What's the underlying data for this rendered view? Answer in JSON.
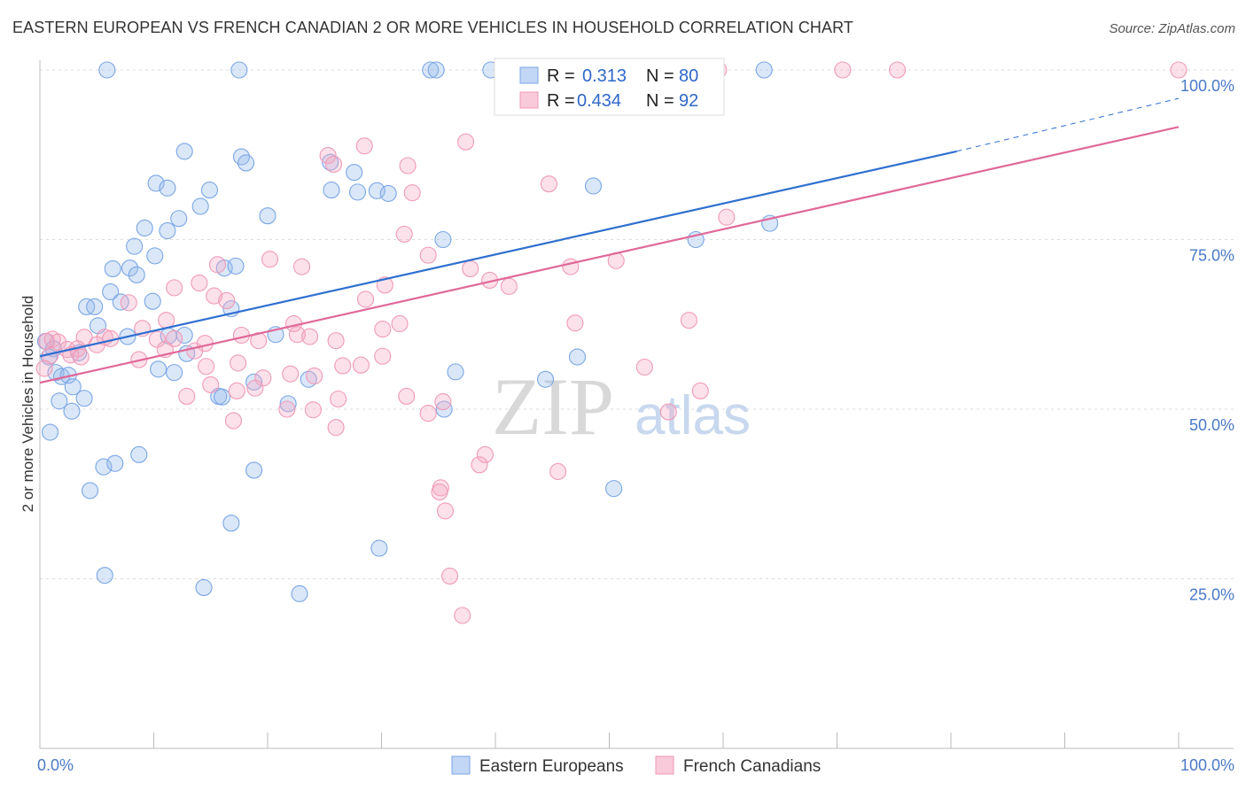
{
  "title": "EASTERN EUROPEAN VS FRENCH CANADIAN 2 OR MORE VEHICLES IN HOUSEHOLD CORRELATION CHART",
  "source": "Source: ZipAtlas.com",
  "watermark": {
    "zip": "ZIP",
    "atlas": "atlas"
  },
  "legend": {
    "r_label": "R =",
    "n_label": "N =",
    "rows": [
      {
        "r": "0.313",
        "n": "80",
        "color": "#7aa6e6"
      },
      {
        "r": "0.434",
        "n": "92",
        "color": "#f09ab8"
      }
    ]
  },
  "bottom_legend": [
    "Eastern Europeans",
    "French Canadians"
  ],
  "chart_data": {
    "type": "scatter",
    "ylabel": "2 or more Vehicles in Household",
    "xlim": [
      0,
      100
    ],
    "ylim": [
      0,
      100
    ],
    "x_ticks": [
      "0.0%",
      "100.0%"
    ],
    "y_ticks": [
      {
        "value": 25,
        "label": "25.0%"
      },
      {
        "value": 50,
        "label": "50.0%"
      },
      {
        "value": 75,
        "label": "75.0%"
      },
      {
        "value": 100,
        "label": "100.0%"
      }
    ],
    "grid": true,
    "series": [
      {
        "name": "Eastern Europeans",
        "color": "#7aa6e6",
        "trend": {
          "x0": 0,
          "y0": 57.8,
          "x1": 80.5,
          "y1": 88.0,
          "dash_to": {
            "x": 100,
            "y": 95.8
          }
        },
        "points": [
          [
            17.5,
            100
          ],
          [
            34.3,
            100
          ],
          [
            34.8,
            100
          ],
          [
            39.6,
            100
          ],
          [
            63.6,
            100
          ],
          [
            5.9,
            100
          ],
          [
            12.7,
            88.0
          ],
          [
            17.7,
            87.2
          ],
          [
            18.1,
            86.3
          ],
          [
            25.5,
            86.4
          ],
          [
            27.6,
            84.9
          ],
          [
            10.2,
            83.3
          ],
          [
            11.2,
            82.6
          ],
          [
            14.9,
            82.3
          ],
          [
            25.6,
            82.3
          ],
          [
            27.9,
            82.0
          ],
          [
            29.6,
            82.2
          ],
          [
            30.6,
            81.8
          ],
          [
            48.6,
            82.9
          ],
          [
            14.1,
            79.9
          ],
          [
            12.2,
            78.1
          ],
          [
            20.0,
            78.5
          ],
          [
            9.2,
            76.7
          ],
          [
            11.2,
            76.3
          ],
          [
            8.3,
            74.0
          ],
          [
            10.1,
            72.6
          ],
          [
            35.4,
            75.0
          ],
          [
            57.6,
            75.0
          ],
          [
            64.1,
            77.4
          ],
          [
            6.4,
            70.7
          ],
          [
            7.9,
            70.8
          ],
          [
            8.5,
            69.8
          ],
          [
            16.2,
            70.8
          ],
          [
            17.2,
            71.1
          ],
          [
            6.2,
            67.3
          ],
          [
            4.1,
            65.1
          ],
          [
            4.8,
            65.1
          ],
          [
            7.1,
            65.8
          ],
          [
            9.9,
            65.9
          ],
          [
            16.8,
            64.8
          ],
          [
            5.1,
            62.3
          ],
          [
            7.7,
            60.7
          ],
          [
            11.3,
            60.8
          ],
          [
            12.7,
            60.9
          ],
          [
            20.7,
            61.0
          ],
          [
            0.5,
            60.0
          ],
          [
            1.2,
            58.9
          ],
          [
            0.8,
            57.7
          ],
          [
            12.9,
            58.2
          ],
          [
            3.4,
            58.3
          ],
          [
            10.4,
            55.9
          ],
          [
            11.8,
            55.4
          ],
          [
            1.4,
            55.4
          ],
          [
            1.9,
            54.8
          ],
          [
            2.5,
            55.0
          ],
          [
            36.5,
            55.5
          ],
          [
            47.2,
            57.7
          ],
          [
            2.9,
            53.3
          ],
          [
            18.8,
            54.0
          ],
          [
            23.6,
            54.4
          ],
          [
            44.4,
            54.4
          ],
          [
            1.7,
            51.2
          ],
          [
            3.9,
            51.6
          ],
          [
            15.7,
            51.9
          ],
          [
            16.0,
            51.8
          ],
          [
            21.8,
            50.8
          ],
          [
            35.5,
            50.0
          ],
          [
            2.8,
            49.7
          ],
          [
            0.9,
            46.6
          ],
          [
            8.7,
            43.3
          ],
          [
            5.6,
            41.5
          ],
          [
            6.6,
            42.0
          ],
          [
            18.8,
            41.0
          ],
          [
            4.4,
            38.0
          ],
          [
            50.4,
            38.3
          ],
          [
            16.8,
            33.2
          ],
          [
            29.8,
            29.5
          ],
          [
            5.7,
            25.5
          ],
          [
            14.4,
            23.7
          ],
          [
            22.8,
            22.8
          ]
        ]
      },
      {
        "name": "French Canadians",
        "color": "#f09ab8",
        "trend": {
          "x0": 0,
          "y0": 53.9,
          "x1": 100,
          "y1": 91.6
        },
        "points": [
          [
            47.5,
            100
          ],
          [
            59.6,
            100
          ],
          [
            70.5,
            100
          ],
          [
            75.3,
            100
          ],
          [
            100,
            100
          ],
          [
            37.4,
            89.4
          ],
          [
            28.5,
            88.8
          ],
          [
            25.3,
            87.4
          ],
          [
            25.8,
            86.1
          ],
          [
            32.3,
            85.9
          ],
          [
            44.7,
            83.2
          ],
          [
            32.7,
            81.9
          ],
          [
            60.3,
            78.3
          ],
          [
            32.0,
            75.8
          ],
          [
            34.1,
            72.7
          ],
          [
            20.2,
            72.1
          ],
          [
            15.6,
            71.3
          ],
          [
            23.0,
            71.0
          ],
          [
            37.8,
            70.7
          ],
          [
            46.6,
            71.0
          ],
          [
            50.6,
            71.9
          ],
          [
            39.5,
            69.0
          ],
          [
            30.3,
            68.3
          ],
          [
            41.2,
            68.1
          ],
          [
            14.0,
            68.6
          ],
          [
            11.8,
            67.9
          ],
          [
            15.3,
            66.7
          ],
          [
            16.4,
            66.0
          ],
          [
            28.6,
            66.2
          ],
          [
            7.8,
            65.7
          ],
          [
            11.1,
            63.1
          ],
          [
            22.3,
            62.6
          ],
          [
            31.6,
            62.6
          ],
          [
            57.0,
            63.1
          ],
          [
            9.0,
            61.9
          ],
          [
            5.7,
            60.6
          ],
          [
            17.7,
            60.9
          ],
          [
            3.9,
            60.6
          ],
          [
            6.2,
            60.4
          ],
          [
            10.3,
            60.3
          ],
          [
            11.8,
            60.4
          ],
          [
            19.2,
            60.1
          ],
          [
            22.6,
            61.0
          ],
          [
            23.7,
            60.7
          ],
          [
            30.1,
            61.8
          ],
          [
            0.6,
            60.0
          ],
          [
            1.1,
            60.3
          ],
          [
            1.6,
            59.9
          ],
          [
            5.0,
            59.5
          ],
          [
            14.5,
            59.7
          ],
          [
            2.4,
            58.8
          ],
          [
            3.3,
            58.9
          ],
          [
            11.0,
            58.8
          ],
          [
            13.6,
            58.6
          ],
          [
            26.0,
            60.1
          ],
          [
            30.1,
            57.8
          ],
          [
            0.9,
            57.9
          ],
          [
            2.7,
            58.0
          ],
          [
            3.6,
            57.7
          ],
          [
            8.7,
            57.3
          ],
          [
            17.4,
            56.8
          ],
          [
            28.2,
            56.5
          ],
          [
            14.6,
            56.3
          ],
          [
            26.6,
            56.4
          ],
          [
            53.1,
            56.2
          ],
          [
            0.4,
            56.0
          ],
          [
            22.0,
            55.2
          ],
          [
            24.1,
            54.9
          ],
          [
            19.6,
            54.6
          ],
          [
            15.0,
            53.6
          ],
          [
            17.3,
            52.7
          ],
          [
            18.9,
            53.1
          ],
          [
            32.2,
            51.9
          ],
          [
            35.4,
            51.1
          ],
          [
            12.9,
            51.9
          ],
          [
            26.2,
            51.5
          ],
          [
            21.7,
            50.0
          ],
          [
            24.0,
            49.9
          ],
          [
            55.2,
            49.6
          ],
          [
            34.1,
            49.4
          ],
          [
            17.0,
            48.3
          ],
          [
            26.0,
            47.3
          ],
          [
            39.1,
            43.3
          ],
          [
            38.6,
            41.8
          ],
          [
            45.5,
            40.8
          ],
          [
            35.2,
            38.4
          ],
          [
            35.1,
            37.8
          ],
          [
            35.6,
            35.0
          ],
          [
            36.0,
            25.4
          ],
          [
            37.1,
            19.6
          ],
          [
            58.0,
            52.7
          ],
          [
            47.0,
            62.7
          ]
        ]
      }
    ]
  }
}
